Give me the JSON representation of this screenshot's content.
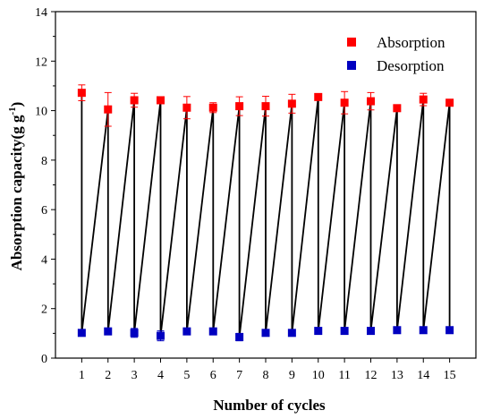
{
  "chart_data": {
    "type": "scatter",
    "title": "",
    "xlabel": "Number of cycles",
    "ylabel_main": "Absorption capacity(g g",
    "ylabel_sup": "-1",
    "ylabel_close": ")",
    "xlim": [
      0,
      16
    ],
    "ylim": [
      0,
      14
    ],
    "x_ticks": [
      1,
      2,
      3,
      4,
      5,
      6,
      7,
      8,
      9,
      10,
      11,
      12,
      13,
      14,
      15
    ],
    "y_ticks": [
      0,
      2,
      4,
      6,
      8,
      10,
      12,
      14
    ],
    "x": [
      1,
      2,
      3,
      4,
      5,
      6,
      7,
      8,
      9,
      10,
      11,
      12,
      13,
      14,
      15
    ],
    "legend_position": "top-right",
    "connector_color": "#000000",
    "series": [
      {
        "name": "Absorption",
        "color": "#ff0000",
        "marker": "square",
        "values": [
          10.72,
          10.05,
          10.42,
          10.42,
          10.12,
          10.12,
          10.18,
          10.18,
          10.28,
          10.55,
          10.32,
          10.38,
          10.1,
          10.45,
          10.32
        ],
        "errors": [
          0.32,
          0.68,
          0.28,
          0.1,
          0.45,
          0.2,
          0.38,
          0.4,
          0.38,
          0.1,
          0.45,
          0.35,
          0.1,
          0.25,
          0.1
        ]
      },
      {
        "name": "Desorption",
        "color": "#0000c0",
        "marker": "square",
        "values": [
          1.02,
          1.08,
          1.02,
          0.9,
          1.08,
          1.08,
          0.85,
          1.02,
          1.02,
          1.1,
          1.1,
          1.1,
          1.13,
          1.13,
          1.13
        ],
        "errors": [
          0.05,
          0.05,
          0.18,
          0.2,
          0.05,
          0.05,
          0.15,
          0.05,
          0.05,
          0.05,
          0.05,
          0.05,
          0.05,
          0.05,
          0.05
        ]
      }
    ]
  }
}
